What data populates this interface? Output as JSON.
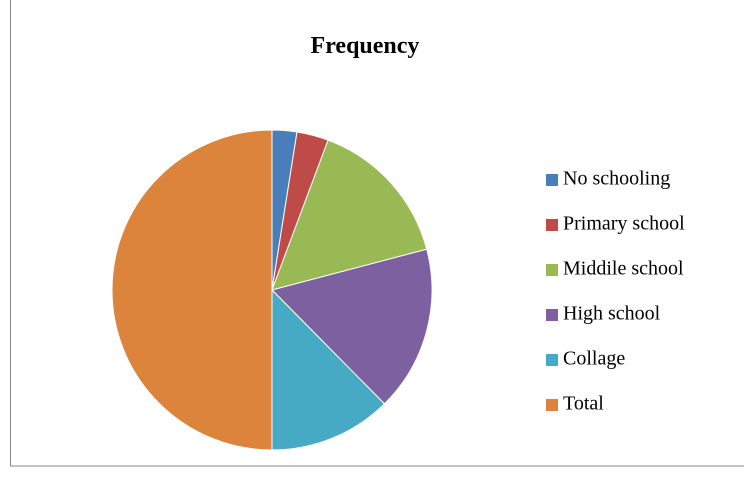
{
  "chart_data": {
    "type": "pie",
    "title": "Frequency",
    "categories": [
      "No schooling",
      "Primary school",
      "Middile school",
      "High school",
      "Collage",
      "Total"
    ],
    "values": [
      2.5,
      3.2,
      15.2,
      16.7,
      12.4,
      50
    ],
    "colors": [
      "#4a7ebb",
      "#be4b48",
      "#98b954",
      "#7d60a0",
      "#46aac5",
      "#dd843c"
    ],
    "legend": "right"
  }
}
